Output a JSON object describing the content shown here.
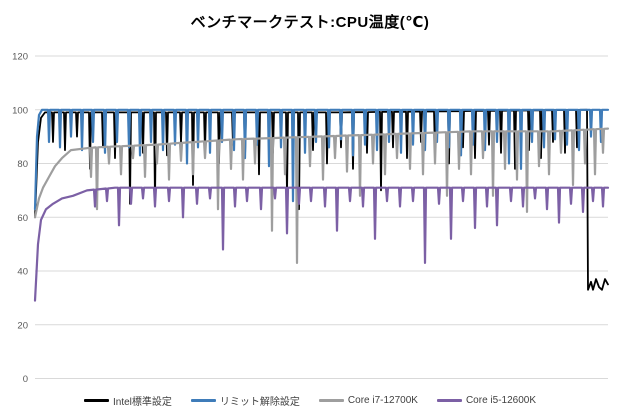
{
  "title": "ベンチマークテスト:CPU温度(℃)",
  "legend": {
    "items": [
      {
        "label": "Intel標準設定"
      },
      {
        "label": "リミット解除設定"
      },
      {
        "label": "Core i7-12700K"
      },
      {
        "label": "Core i5-12600K"
      }
    ]
  },
  "chart_data": {
    "type": "line",
    "title": "ベンチマークテスト:CPU温度(℃)",
    "xlabel": "",
    "ylabel": "",
    "ylim": [
      0,
      120
    ],
    "yticks": [
      0,
      20,
      40,
      60,
      80,
      100,
      120
    ],
    "x_range": [
      0,
      573
    ],
    "x_axis_labels_visible": false,
    "grid": "horizontal",
    "legend_position": "bottom",
    "style": {
      "grid_color": "#d9d9d9",
      "tick_label_color": "#595959",
      "legend_text_color": "#404040",
      "title_color": "#000000",
      "background": "#ffffff"
    },
    "series": [
      {
        "id": "intel-standard",
        "name": "Intel標準設定",
        "color": "#000000",
        "width": 1.8,
        "trend": [
          [
            0,
            60
          ],
          [
            3,
            88
          ],
          [
            6,
            97
          ],
          [
            10,
            99
          ],
          [
            300,
            99
          ],
          [
            552,
            100
          ],
          [
            553,
            33
          ],
          [
            556,
            36
          ],
          [
            558,
            33
          ],
          [
            561,
            37
          ],
          [
            564,
            34
          ],
          [
            567,
            33
          ],
          [
            570,
            37
          ],
          [
            573,
            35
          ]
        ],
        "dips": [
          [
            18,
            88
          ],
          [
            30,
            85
          ],
          [
            42,
            90
          ],
          [
            55,
            78
          ],
          [
            68,
            86
          ],
          [
            80,
            82
          ],
          [
            95,
            65
          ],
          [
            108,
            84
          ],
          [
            120,
            66
          ],
          [
            132,
            83
          ],
          [
            146,
            88
          ],
          [
            158,
            72
          ],
          [
            170,
            85
          ],
          [
            184,
            80
          ],
          [
            198,
            87
          ],
          [
            210,
            82
          ],
          [
            224,
            76
          ],
          [
            238,
            84
          ],
          [
            252,
            68
          ],
          [
            264,
            63
          ],
          [
            278,
            85
          ],
          [
            292,
            80
          ],
          [
            306,
            86
          ],
          [
            318,
            78
          ],
          [
            332,
            84
          ],
          [
            346,
            70
          ],
          [
            358,
            86
          ],
          [
            372,
            82
          ],
          [
            386,
            88
          ],
          [
            400,
            84
          ],
          [
            414,
            80
          ],
          [
            428,
            86
          ],
          [
            440,
            82
          ],
          [
            454,
            87
          ],
          [
            466,
            84
          ],
          [
            480,
            78
          ],
          [
            494,
            85
          ],
          [
            506,
            82
          ],
          [
            518,
            88
          ],
          [
            530,
            84
          ],
          [
            542,
            86
          ]
        ]
      },
      {
        "id": "limit-release",
        "name": "リミット解除設定",
        "color": "#3f7cb9",
        "width": 2.2,
        "trend": [
          [
            0,
            63
          ],
          [
            2,
            90
          ],
          [
            4,
            98
          ],
          [
            7,
            100
          ],
          [
            573,
            100
          ]
        ],
        "dips": [
          [
            14,
            88
          ],
          [
            25,
            86
          ],
          [
            36,
            90
          ],
          [
            47,
            85
          ],
          [
            58,
            88
          ],
          [
            70,
            84
          ],
          [
            82,
            88
          ],
          [
            94,
            86
          ],
          [
            105,
            83
          ],
          [
            116,
            88
          ],
          [
            128,
            85
          ],
          [
            140,
            87
          ],
          [
            152,
            80
          ],
          [
            163,
            86
          ],
          [
            175,
            84
          ],
          [
            187,
            88
          ],
          [
            199,
            85
          ],
          [
            210,
            82
          ],
          [
            222,
            87
          ],
          [
            234,
            79
          ],
          [
            246,
            86
          ],
          [
            258,
            66
          ],
          [
            270,
            84
          ],
          [
            281,
            88
          ],
          [
            294,
            86
          ],
          [
            306,
            89
          ],
          [
            318,
            83
          ],
          [
            330,
            87
          ],
          [
            342,
            85
          ],
          [
            354,
            88
          ],
          [
            366,
            84
          ],
          [
            378,
            87
          ],
          [
            390,
            85
          ],
          [
            402,
            88
          ],
          [
            414,
            86
          ],
          [
            426,
            83
          ],
          [
            438,
            87
          ],
          [
            450,
            85
          ],
          [
            462,
            88
          ],
          [
            474,
            80
          ],
          [
            486,
            78
          ],
          [
            497,
            88
          ],
          [
            509,
            86
          ],
          [
            520,
            89
          ],
          [
            532,
            87
          ],
          [
            544,
            85
          ],
          [
            556,
            90
          ],
          [
            566,
            88
          ]
        ]
      },
      {
        "id": "core-i7-12700k",
        "name": "Core i7-12700K",
        "color": "#9e9e9e",
        "width": 2.2,
        "trend": [
          [
            0,
            60
          ],
          [
            4,
            67
          ],
          [
            8,
            71
          ],
          [
            14,
            75
          ],
          [
            20,
            79
          ],
          [
            27,
            82
          ],
          [
            36,
            85
          ],
          [
            60,
            86
          ],
          [
            120,
            87
          ],
          [
            200,
            89
          ],
          [
            280,
            90
          ],
          [
            360,
            91
          ],
          [
            440,
            92
          ],
          [
            520,
            92
          ],
          [
            573,
            93
          ]
        ],
        "dips": [
          [
            56,
            75
          ],
          [
            62,
            63
          ],
          [
            74,
            80
          ],
          [
            86,
            76
          ],
          [
            98,
            82
          ],
          [
            110,
            75
          ],
          [
            122,
            80
          ],
          [
            134,
            74
          ],
          [
            146,
            81
          ],
          [
            158,
            76
          ],
          [
            170,
            82
          ],
          [
            183,
            63
          ],
          [
            196,
            78
          ],
          [
            208,
            74
          ],
          [
            220,
            80
          ],
          [
            237,
            55
          ],
          [
            250,
            76
          ],
          [
            262,
            43
          ],
          [
            275,
            79
          ],
          [
            288,
            74
          ],
          [
            300,
            82
          ],
          [
            312,
            77
          ],
          [
            325,
            68
          ],
          [
            338,
            80
          ],
          [
            350,
            76
          ],
          [
            362,
            82
          ],
          [
            375,
            78
          ],
          [
            388,
            76
          ],
          [
            400,
            80
          ],
          [
            412,
            68
          ],
          [
            424,
            78
          ],
          [
            436,
            76
          ],
          [
            448,
            82
          ],
          [
            458,
            68
          ],
          [
            470,
            78
          ],
          [
            482,
            74
          ],
          [
            492,
            62
          ],
          [
            504,
            79
          ],
          [
            514,
            76
          ],
          [
            526,
            84
          ],
          [
            538,
            72
          ],
          [
            550,
            80
          ],
          [
            560,
            76
          ],
          [
            568,
            84
          ]
        ]
      },
      {
        "id": "core-i5-12600k",
        "name": "Core i5-12600K",
        "color": "#7c60a5",
        "width": 2.2,
        "trend": [
          [
            0,
            29
          ],
          [
            3,
            50
          ],
          [
            6,
            59
          ],
          [
            11,
            63
          ],
          [
            18,
            65
          ],
          [
            27,
            67
          ],
          [
            38,
            68
          ],
          [
            52,
            70
          ],
          [
            80,
            71
          ],
          [
            573,
            71
          ]
        ],
        "dips": [
          [
            60,
            64
          ],
          [
            72,
            66
          ],
          [
            84,
            57
          ],
          [
            96,
            65
          ],
          [
            108,
            67
          ],
          [
            120,
            64
          ],
          [
            134,
            66
          ],
          [
            148,
            60
          ],
          [
            162,
            65
          ],
          [
            175,
            67
          ],
          [
            188,
            48
          ],
          [
            200,
            64
          ],
          [
            212,
            66
          ],
          [
            226,
            63
          ],
          [
            240,
            67
          ],
          [
            252,
            54
          ],
          [
            264,
            65
          ],
          [
            276,
            66
          ],
          [
            290,
            64
          ],
          [
            302,
            55
          ],
          [
            315,
            66
          ],
          [
            328,
            64
          ],
          [
            340,
            52
          ],
          [
            352,
            66
          ],
          [
            365,
            64
          ],
          [
            378,
            66
          ],
          [
            390,
            43
          ],
          [
            404,
            65
          ],
          [
            416,
            52
          ],
          [
            428,
            66
          ],
          [
            440,
            56
          ],
          [
            452,
            64
          ],
          [
            462,
            57
          ],
          [
            476,
            66
          ],
          [
            488,
            64
          ],
          [
            500,
            67
          ],
          [
            512,
            63
          ],
          [
            524,
            58
          ],
          [
            536,
            65
          ],
          [
            548,
            62
          ],
          [
            558,
            66
          ],
          [
            568,
            64
          ]
        ]
      }
    ]
  }
}
